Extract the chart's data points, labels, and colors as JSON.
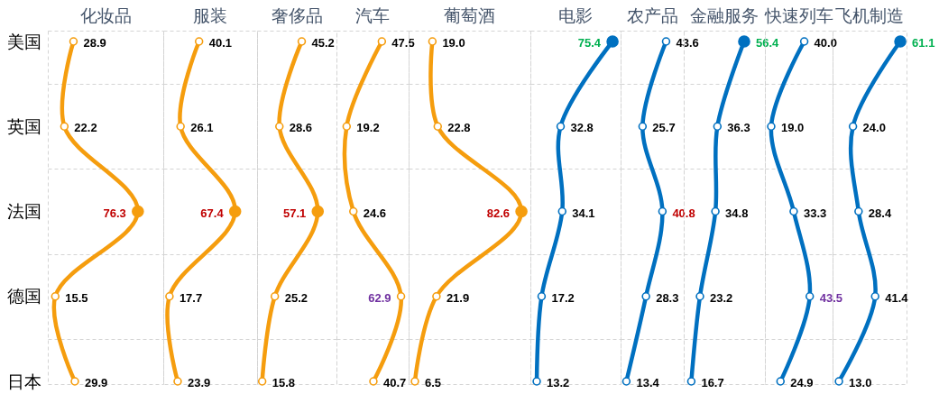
{
  "chart_data": [
    {
      "type": "line",
      "title": "化妆品",
      "orientation": "horizontal",
      "categories": [
        "美国",
        "英国",
        "法国",
        "德国",
        "日本"
      ],
      "series": [
        {
          "color": "#f59d0e",
          "values": [
            28.9,
            22.2,
            76.3,
            15.5,
            29.9
          ],
          "value_labels": [
            "28.9",
            "22.2",
            null,
            "15.5",
            "29.9"
          ]
        },
        {
          "type": "scatter",
          "color": "#f59d0e",
          "values": [
            null,
            null,
            76.3,
            null,
            null
          ]
        }
      ],
      "annotations": [
        {
          "text": "76.3",
          "x": 76.3,
          "y": "法国"
        }
      ],
      "xlim": [
        10,
        95
      ],
      "marker": "circle",
      "grid": "y",
      "tick_labels": "y"
    },
    {
      "type": "line",
      "title": "服装",
      "orientation": "horizontal",
      "categories": [
        "美国",
        "英国",
        "法国",
        "德国",
        "日本"
      ],
      "series": [
        {
          "color": "#f59d0e",
          "values": [
            40.1,
            26.1,
            67.4,
            17.7,
            23.9
          ],
          "value_labels": [
            "40.1",
            "26.1",
            null,
            "17.7",
            "23.9"
          ]
        },
        {
          "type": "scatter",
          "color": "#f59d0e",
          "values": [
            null,
            null,
            67.4,
            null,
            null
          ]
        }
      ],
      "annotations": [
        {
          "text": "67.4",
          "x": 67.4,
          "y": "法国"
        }
      ],
      "xlim": [
        13,
        84
      ],
      "marker": "circle",
      "grid": "y",
      "tick_labels": false
    },
    {
      "type": "line",
      "title": "奢侈品",
      "orientation": "horizontal",
      "categories": [
        "美国",
        "英国",
        "法国",
        "德国",
        "日本"
      ],
      "series": [
        {
          "color": "#f59d0e",
          "values": [
            45.2,
            28.6,
            57.1,
            25.2,
            15.8
          ],
          "value_labels": [
            "45.2",
            "28.6",
            null,
            "25.2",
            "15.8"
          ]
        },
        {
          "type": "scatter",
          "color": "#f59d0e",
          "values": [
            null,
            null,
            57.1,
            null,
            null
          ]
        }
      ],
      "annotations": [
        {
          "text": "57.1",
          "x": 57.1,
          "y": "法国"
        }
      ],
      "xlim": [
        12,
        71
      ],
      "marker": "circle",
      "grid": "y",
      "tick_labels": false
    },
    {
      "type": "line",
      "title": "汽车",
      "orientation": "horizontal",
      "categories": [
        "美国",
        "英国",
        "法国",
        "德国",
        "日本"
      ],
      "series": [
        {
          "color": "#f59d0e",
          "values": [
            47.5,
            19.2,
            24.6,
            62.9,
            40.7
          ],
          "value_labels": [
            "47.5",
            "19.2",
            "24.6",
            null,
            "40.7"
          ]
        }
      ],
      "annotations": [
        {
          "text": "62.9",
          "x": 62.9,
          "y": "德国"
        }
      ],
      "xlim": [
        11,
        69
      ],
      "marker": "circle",
      "grid": "y",
      "tick_labels": false
    },
    {
      "type": "line",
      "title": "葡萄酒",
      "orientation": "horizontal",
      "categories": [
        "美国",
        "英国",
        "法国",
        "德国",
        "日本"
      ],
      "series": [
        {
          "color": "#f59d0e",
          "values": [
            19.0,
            22.8,
            82.6,
            21.9,
            6.5
          ],
          "value_labels": [
            "19.0",
            "22.8",
            null,
            "21.9",
            "6.5"
          ]
        },
        {
          "type": "scatter",
          "color": "#f59d0e",
          "values": [
            null,
            null,
            82.6,
            null,
            null
          ]
        }
      ],
      "annotations": [
        {
          "text": "82.6",
          "x": 82.6,
          "y": "法国"
        }
      ],
      "xlim": [
        2,
        89
      ],
      "marker": "circle",
      "grid": "y",
      "tick_labels": false
    },
    {
      "type": "line",
      "title": "电影",
      "orientation": "horizontal",
      "categories": [
        "美国",
        "英国",
        "法国",
        "德国",
        "日本"
      ],
      "series": [
        {
          "color": "#0070c0",
          "values": [
            75.4,
            32.8,
            34.1,
            17.2,
            13.2
          ],
          "value_labels": [
            null,
            "32.8",
            "34.1",
            "17.2",
            "13.2"
          ]
        },
        {
          "type": "scatter",
          "color": "#0070c0",
          "values": [
            75.4,
            null,
            null,
            null,
            null
          ]
        }
      ],
      "annotations": [
        {
          "text": "75.4",
          "x": 75.4,
          "y": "美国"
        }
      ],
      "xlim": [
        8,
        82
      ],
      "marker": "circle",
      "grid": "y",
      "tick_labels": false
    },
    {
      "type": "line",
      "title": "农产品",
      "orientation": "horizontal",
      "categories": [
        "美国",
        "英国",
        "法国",
        "德国",
        "日本"
      ],
      "series": [
        {
          "color": "#0070c0",
          "values": [
            43.6,
            25.7,
            40.8,
            28.3,
            13.4
          ],
          "value_labels": [
            "43.6",
            "25.7",
            null,
            "28.3",
            "13.4"
          ]
        }
      ],
      "annotations": [
        {
          "text": "40.8",
          "x": 40.8,
          "y": "法国"
        }
      ],
      "xlim": [
        9,
        57
      ],
      "marker": "circle",
      "grid": "y",
      "tick_labels": false
    },
    {
      "type": "line",
      "title": "金融服务",
      "orientation": "horizontal",
      "categories": [
        "美国",
        "英国",
        "法国",
        "德国",
        "日本"
      ],
      "series": [
        {
          "color": "#0070c0",
          "values": [
            56.4,
            36.3,
            34.8,
            23.2,
            16.7
          ],
          "value_labels": [
            null,
            "36.3",
            "34.8",
            "23.2",
            "16.7"
          ]
        },
        {
          "type": "scatter",
          "color": "#0070c0",
          "values": [
            56.4,
            null,
            null,
            null,
            null
          ]
        }
      ],
      "annotations": [
        {
          "text": "56.4",
          "x": 56.4,
          "y": "美国"
        }
      ],
      "xlim": [
        11,
        72
      ],
      "marker": "circle",
      "grid": "y",
      "tick_labels": false
    },
    {
      "type": "line",
      "title": "快速列车",
      "orientation": "horizontal",
      "categories": [
        "美国",
        "英国",
        "法国",
        "德国",
        "日本"
      ],
      "series": [
        {
          "color": "#0070c0",
          "values": [
            40.0,
            19.0,
            33.3,
            43.5,
            24.9
          ],
          "value_labels": [
            "40.0",
            "19.0",
            "33.3",
            null,
            "24.9"
          ]
        }
      ],
      "annotations": [
        {
          "text": "43.5",
          "x": 43.5,
          "y": "德国"
        }
      ],
      "xlim": [
        15,
        58
      ],
      "marker": "circle",
      "grid": "y",
      "tick_labels": false
    },
    {
      "type": "line",
      "title": "飞机制造",
      "orientation": "horizontal",
      "categories": [
        "美国",
        "英国",
        "法国",
        "德国",
        "日本"
      ],
      "series": [
        {
          "color": "#0070c0",
          "values": [
            61.1,
            24.0,
            28.4,
            41.4,
            13.0
          ],
          "value_labels": [
            null,
            "24.0",
            "28.4",
            "41.4",
            "13.0"
          ]
        },
        {
          "type": "scatter",
          "color": "#0070c0",
          "values": [
            61.1,
            null,
            null,
            null,
            null
          ]
        }
      ],
      "annotations": [
        {
          "text": "61.1",
          "x": 61.1,
          "y": "美国"
        }
      ],
      "xlim": [
        8,
        66
      ],
      "marker": "circle",
      "grid": "y",
      "tick_labels": false
    }
  ]
}
